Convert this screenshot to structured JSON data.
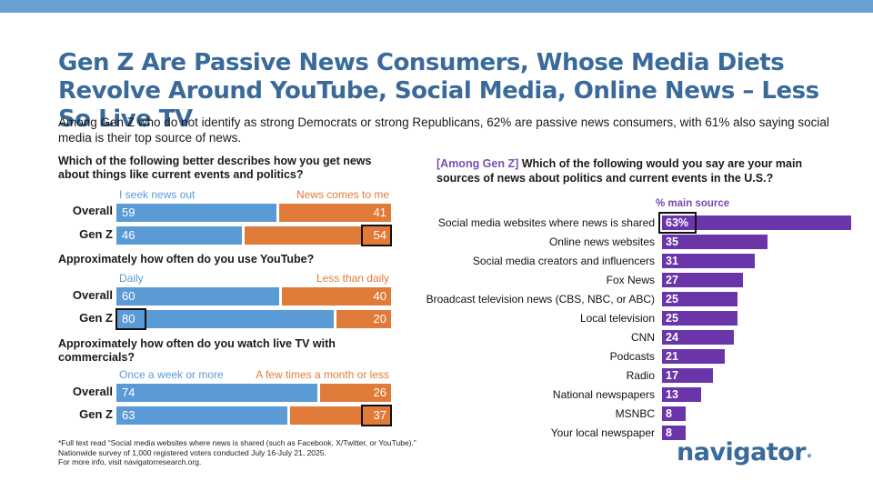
{
  "title": "Gen Z Are Passive News Consumers, Whose Media Diets Revolve Around YouTube, Social Media, Online News – Less So Live TV",
  "subtitle": "Among Gen Z who do not identify as strong Democrats or strong Republicans, 62% are passive news consumers, with 61% also saying social media is their top source of news.",
  "colors": {
    "blue": "#5b9bd5",
    "orange": "#e07b39",
    "purple": "#6a35a8",
    "title": "#3a6a9a"
  },
  "chart_data": [
    {
      "type": "bar",
      "stacked": true,
      "title": "Which of the following better describes how you get news about things like current events and politics?",
      "categories": [
        "Overall",
        "Gen Z"
      ],
      "series": [
        {
          "name": "I seek news out",
          "values": [
            59,
            46
          ]
        },
        {
          "name": "News comes to me",
          "values": [
            41,
            54
          ]
        }
      ],
      "highlight": {
        "row": 1,
        "series": 1
      }
    },
    {
      "type": "bar",
      "stacked": true,
      "title": "Approximately how often do you use YouTube?",
      "categories": [
        "Overall",
        "Gen Z"
      ],
      "series": [
        {
          "name": "Daily",
          "values": [
            60,
            80
          ]
        },
        {
          "name": "Less than daily",
          "values": [
            40,
            20
          ]
        }
      ],
      "highlight": {
        "row": 1,
        "series": 0
      }
    },
    {
      "type": "bar",
      "stacked": true,
      "title": "Approximately how often do you watch live TV with commercials?",
      "categories": [
        "Overall",
        "Gen Z"
      ],
      "series": [
        {
          "name": "Once a week or more",
          "values": [
            74,
            63
          ]
        },
        {
          "name": "A few times a month or less",
          "values": [
            26,
            37
          ]
        }
      ],
      "highlight": {
        "row": 1,
        "series": 1
      }
    },
    {
      "type": "bar",
      "orientation": "horizontal",
      "tag": "[Among Gen Z]",
      "title": "Which of the following would you say are your main sources of news about politics and current events in the U.S.?",
      "value_header": "% main source",
      "categories": [
        "Social media websites where news is shared",
        "Online news websites",
        "Social media creators and influencers",
        "Fox News",
        "Broadcast television news (CBS, NBC, or ABC)",
        "Local television",
        "CNN",
        "Podcasts",
        "Radio",
        "National newspapers",
        "MSNBC",
        "Your local newspaper"
      ],
      "values": [
        63,
        35,
        31,
        27,
        25,
        25,
        24,
        21,
        17,
        13,
        8,
        8
      ],
      "value_labels": [
        "63%",
        "35",
        "31",
        "27",
        "25",
        "25",
        "24",
        "21",
        "17",
        "13",
        "8",
        "8"
      ],
      "highlight": 0
    }
  ],
  "footnote": [
    "*Full text read “Social media websites where news is shared (such as Facebook, X/Twitter, or YouTube).”",
    "Nationwide survey of 1,000 registered voters conducted July 16-July 21, 2025.",
    "For more info, visit navigatorresearch.org."
  ],
  "logo": {
    "text": "navigator",
    "mark": "•"
  }
}
